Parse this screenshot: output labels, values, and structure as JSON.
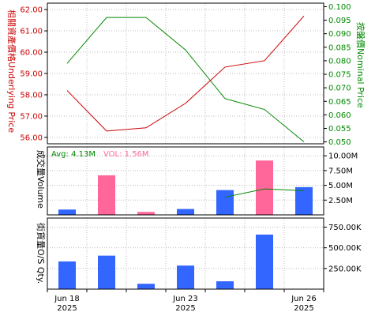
{
  "colors": {
    "underlying": "#cc0000",
    "nominal": "#008800",
    "vol_up": "#ff6699",
    "vol_down": "#3366ff",
    "avg_line": "#008800",
    "avg_text": "#008800",
    "vol_text": "#ff6699",
    "grid": "#bbbbbb",
    "frame": "#000000",
    "tick_text": "#000000"
  },
  "axis_titles": {
    "underlying": "相關資產價格Underlying Price",
    "nominal": "按盤價Nominal Price",
    "volume": "成交量Volume",
    "os_qty": "街貨量O/S Qty."
  },
  "legend": {
    "avg": "Avg: 4.13M",
    "vol": "VOL: 1.56M"
  },
  "chart_data": [
    {
      "type": "line",
      "panel": "price",
      "x_labels": [
        {
          "line1": "Jun 18",
          "line2": "2025",
          "index": 0
        },
        {
          "line1": "Jun 23",
          "line2": "2025",
          "index": 3
        },
        {
          "line1": "Jun 26",
          "line2": "2025",
          "index": 6
        }
      ],
      "series": [
        {
          "name": "相關資產價格Underlying Price",
          "axis": "left",
          "values": [
            58.2,
            56.3,
            56.45,
            57.6,
            59.3,
            59.6,
            61.7
          ]
        },
        {
          "name": "按盤價Nominal Price",
          "axis": "right",
          "values": [
            0.079,
            0.096,
            0.096,
            0.084,
            0.066,
            0.062,
            0.05
          ]
        }
      ],
      "y_left": {
        "ticks": [
          "56.00",
          "57.00",
          "58.00",
          "59.00",
          "60.00",
          "61.00",
          "62.00"
        ],
        "lim": [
          55.7,
          62.3
        ]
      },
      "y_right": {
        "ticks": [
          "0.050",
          "0.055",
          "0.060",
          "0.065",
          "0.070",
          "0.075",
          "0.080",
          "0.085",
          "0.090",
          "0.095",
          "0.100"
        ],
        "lim": [
          0.0493,
          0.1013
        ]
      },
      "grid": true
    },
    {
      "type": "bar",
      "panel": "volume",
      "values": [
        0.9,
        6.7,
        0.5,
        1.0,
        4.2,
        9.2,
        4.7
      ],
      "bar_colors": [
        "down",
        "up",
        "up",
        "down",
        "down",
        "up",
        "down"
      ],
      "avg_line": {
        "start_index": 4,
        "values": [
          3.0,
          4.4,
          4.1
        ]
      },
      "y_right": {
        "ticks": [
          "2.50M",
          "5.00M",
          "7.50M",
          "10.00M"
        ],
        "unit": "M",
        "lim": [
          0,
          11.5
        ]
      },
      "grid": true
    },
    {
      "type": "bar",
      "panel": "os_qty",
      "values": [
        335,
        405,
        65,
        285,
        95,
        660,
        null
      ],
      "y_right": {
        "ticks": [
          "250.00K",
          "500.00K",
          "750.00K"
        ],
        "unit": "K",
        "lim": [
          0,
          860
        ]
      },
      "grid": true
    }
  ]
}
